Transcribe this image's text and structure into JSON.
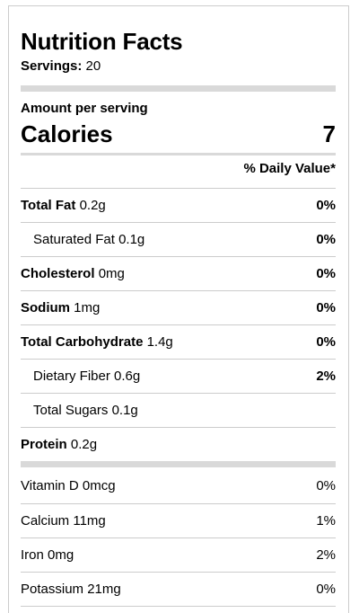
{
  "title": "Nutrition Facts",
  "servings": {
    "label": "Servings:",
    "value": "20"
  },
  "amount_per_serving": "Amount per serving",
  "calories": {
    "label": "Calories",
    "value": "7"
  },
  "daily_value_header": "% Daily Value*",
  "nutrients": [
    {
      "name": "Total Fat",
      "amount": "0.2g",
      "dv": "0%"
    },
    {
      "name": "Saturated Fat",
      "amount": "0.1g",
      "dv": "0%"
    },
    {
      "name": "Cholesterol",
      "amount": "0mg",
      "dv": "0%"
    },
    {
      "name": "Sodium",
      "amount": "1mg",
      "dv": "0%"
    },
    {
      "name": "Total Carbohydrate",
      "amount": "1.4g",
      "dv": "0%"
    },
    {
      "name": "Dietary Fiber",
      "amount": "0.6g",
      "dv": "2%"
    },
    {
      "name": "Total Sugars",
      "amount": "0.1g",
      "dv": ""
    },
    {
      "name": "Protein",
      "amount": "0.2g",
      "dv": ""
    }
  ],
  "vitamins": [
    {
      "name": "Vitamin D",
      "amount": "0mcg",
      "dv": "0%"
    },
    {
      "name": "Calcium",
      "amount": "11mg",
      "dv": "1%"
    },
    {
      "name": "Iron",
      "amount": "0mg",
      "dv": "2%"
    },
    {
      "name": "Potassium",
      "amount": "21mg",
      "dv": "0%"
    }
  ]
}
